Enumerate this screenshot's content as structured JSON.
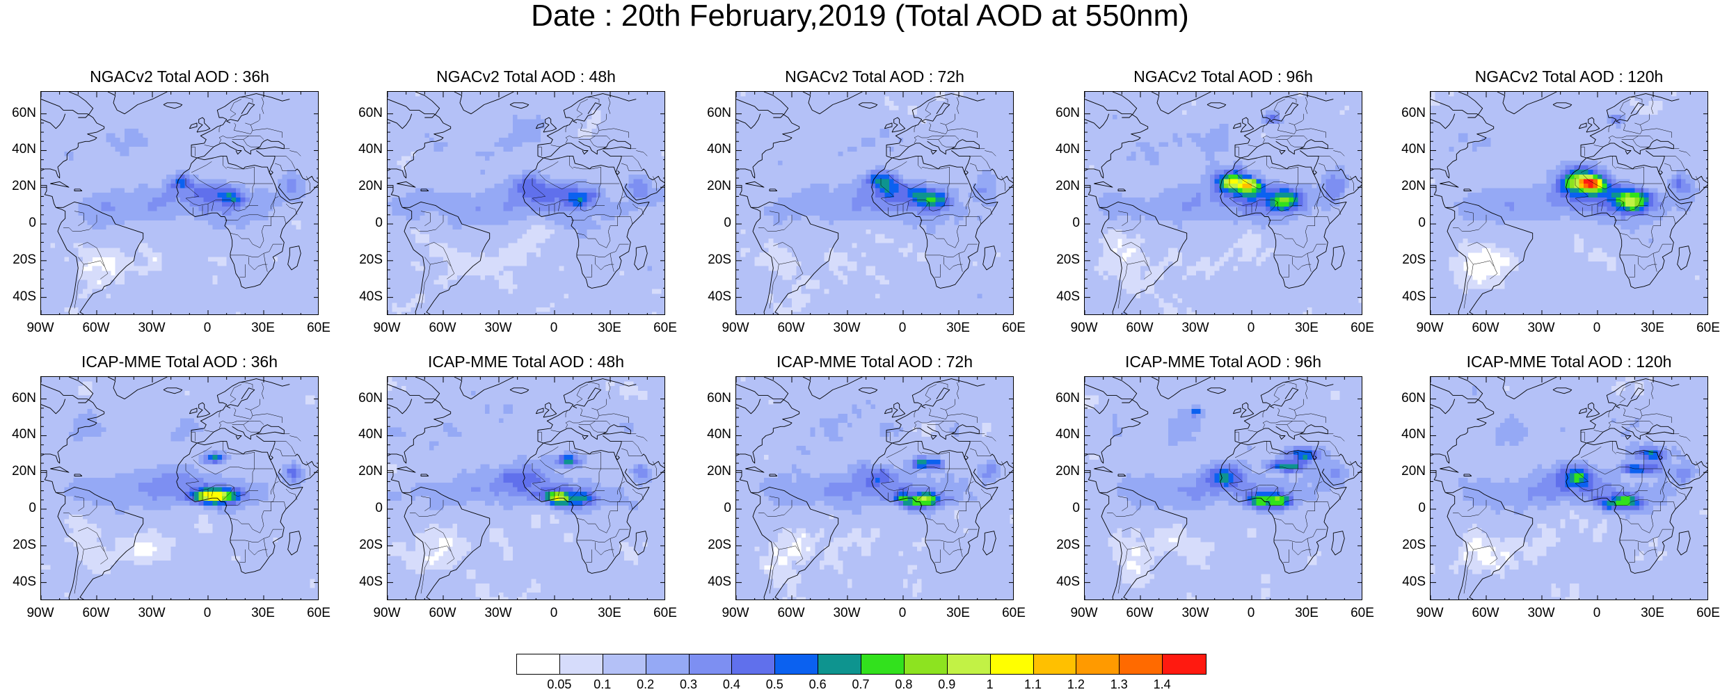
{
  "title": "Date : 20th February,2019 (Total AOD at 550nm)",
  "lat_ticks": [
    "60N",
    "40N",
    "20N",
    "0",
    "20S",
    "40S"
  ],
  "lon_ticks": [
    "90W",
    "60W",
    "30W",
    "0",
    "30E",
    "60E"
  ],
  "rows": [
    {
      "model": "NGACv2",
      "panels": [
        {
          "title": "NGACv2 Total AOD : 36h",
          "lead": "36h"
        },
        {
          "title": "NGACv2 Total AOD : 48h",
          "lead": "48h"
        },
        {
          "title": "NGACv2 Total AOD : 72h",
          "lead": "72h"
        },
        {
          "title": "NGACv2 Total AOD : 96h",
          "lead": "96h"
        },
        {
          "title": "NGACv2 Total AOD : 120h",
          "lead": "120h"
        }
      ]
    },
    {
      "model": "ICAP-MME",
      "panels": [
        {
          "title": "ICAP-MME Total AOD : 36h",
          "lead": "36h"
        },
        {
          "title": "ICAP-MME Total AOD : 48h",
          "lead": "48h"
        },
        {
          "title": "ICAP-MME Total AOD : 72h",
          "lead": "72h"
        },
        {
          "title": "ICAP-MME Total AOD : 96h",
          "lead": "96h"
        },
        {
          "title": "ICAP-MME Total AOD : 120h",
          "lead": "120h"
        }
      ]
    }
  ],
  "colorbar": {
    "labels": [
      "0.05",
      "0.1",
      "0.2",
      "0.3",
      "0.4",
      "0.5",
      "0.6",
      "0.7",
      "0.8",
      "0.9",
      "1",
      "1.1",
      "1.2",
      "1.3",
      "1.4"
    ],
    "colors": [
      "#ffffff",
      "#d6dcfb",
      "#b4c1f7",
      "#95a9f5",
      "#7d8ff2",
      "#6070ec",
      "#0b61f0",
      "#0e948f",
      "#32e11d",
      "#8de320",
      "#c2f245",
      "#ffff00",
      "#ffc000",
      "#ff9a00",
      "#ff6a00",
      "#ff1a10"
    ]
  },
  "map_colors": {
    "land_outline": "#000000",
    "ocean_white": "#ffffff"
  }
}
